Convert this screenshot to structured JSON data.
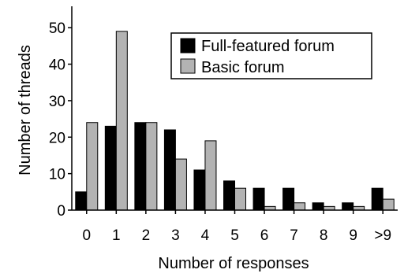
{
  "chart_data": {
    "type": "bar",
    "xlabel": "Number of responses",
    "ylabel": "Number of threads",
    "categories": [
      "0",
      "1",
      "2",
      "3",
      "4",
      "5",
      "6",
      "7",
      "8",
      "9",
      ">9"
    ],
    "ylim": [
      0,
      55
    ],
    "yticks": [
      0,
      10,
      20,
      30,
      40,
      50
    ],
    "grid": false,
    "legend_position": "top-right",
    "series": [
      {
        "name": "Full-featured forum",
        "color": "#000000",
        "values": [
          5,
          23,
          24,
          22,
          11,
          8,
          6,
          6,
          2,
          2,
          6
        ]
      },
      {
        "name": "Basic forum",
        "color": "#b3b3b3",
        "values": [
          24,
          49,
          24,
          14,
          19,
          6,
          1,
          2,
          1,
          1,
          3
        ]
      }
    ]
  }
}
